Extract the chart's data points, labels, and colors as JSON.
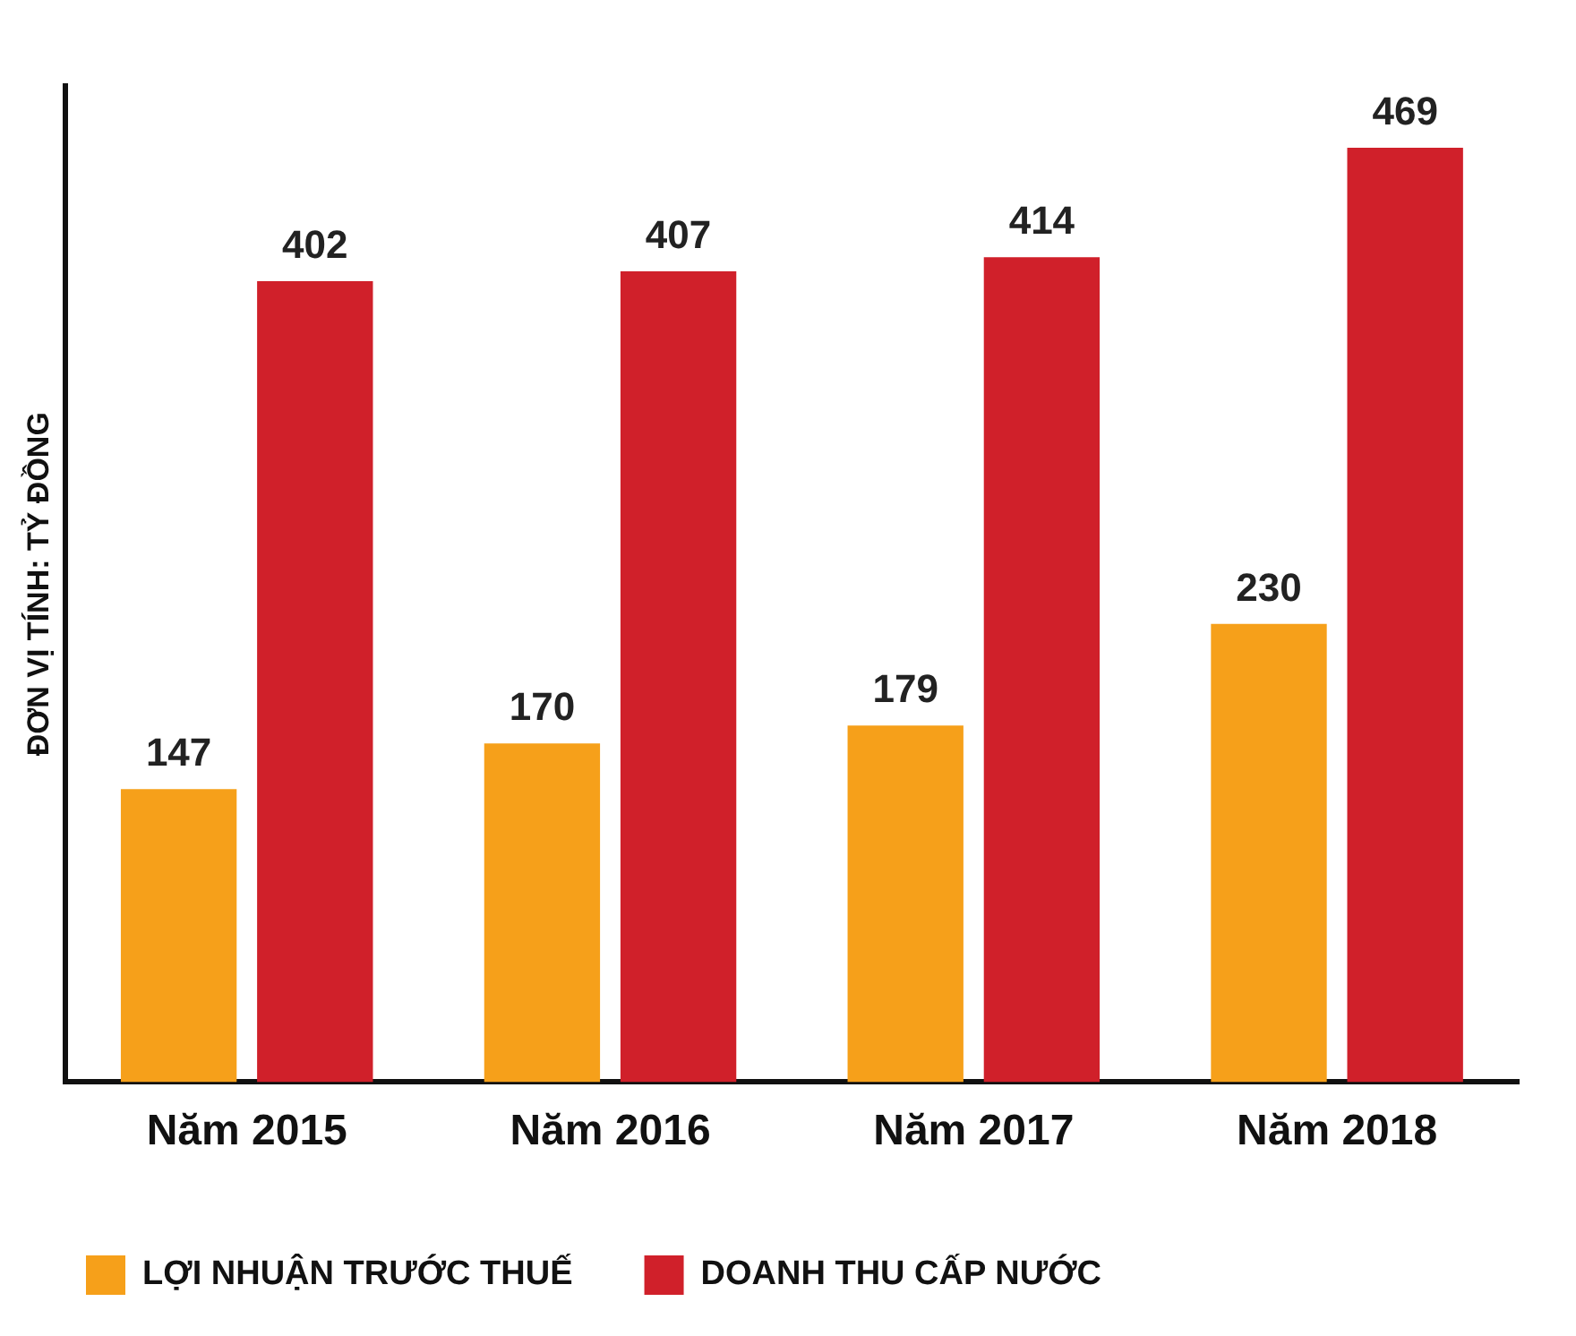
{
  "chart_data": {
    "type": "bar",
    "ylabel": "ĐƠN VỊ TÍNH: TỶ ĐỒNG",
    "categories": [
      "Năm 2015",
      "Năm 2016",
      "Năm 2017",
      "Năm 2018"
    ],
    "series": [
      {
        "name": "LỢI NHUẬN TRƯỚC THUẾ",
        "color": "#f6a01a",
        "values": [
          147,
          170,
          179,
          230
        ]
      },
      {
        "name": "DOANH THU CẤP NƯỚC",
        "color": "#d0202a",
        "values": [
          402,
          407,
          414,
          469
        ]
      }
    ],
    "data_labels": true,
    "legend": "bottom",
    "grid": false,
    "tick_labels": "x"
  }
}
